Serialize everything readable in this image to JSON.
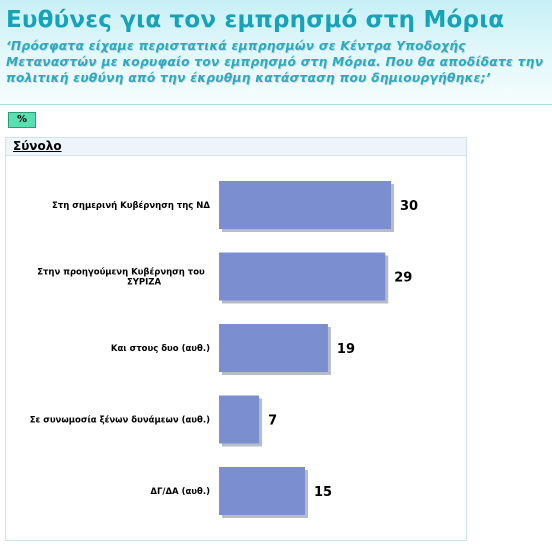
{
  "header": {
    "title": "Ευθύνες για τον εμπρησμό στη Μόρια",
    "subtitle": "‘Πρόσφατα είχαμε περιστατικά εμπρησμών σε Κέντρα Υποδοχής Μεταναστών με κορυφαίο τον εμπρησμό στη Μόρια. Που θα αποδίδατε την πολιτική ευθύνη από την έκρυθμη κατάσταση που δημιουργήθηκε;’"
  },
  "badge": {
    "label": "%"
  },
  "section": {
    "label": "Σύνολο"
  },
  "colors": {
    "bar": "#7b8fd0",
    "bar_shadow": "#b7bcc8"
  },
  "chart_data": {
    "type": "bar",
    "orientation": "horizontal",
    "categories": [
      "Στη σημερινή Κυβέρνηση της ΝΔ",
      "Στην προηγούμενη Κυβέρνηση του ΣΥΡΙΖΑ",
      "Και στους δυο (αυθ.)",
      "Σε συνωμοσία ξένων δυνάμεων (αυθ.)",
      "ΔΓ/ΔΑ (αυθ.)"
    ],
    "category_lines": [
      [
        "Στη σημερινή Κυβέρνηση της ΝΔ"
      ],
      [
        "Στην προηγούμενη Κυβέρνηση του",
        "ΣΥΡΙΖΑ"
      ],
      [
        "Και στους δυο (αυθ.)"
      ],
      [
        "Σε συνωμοσία ξένων δυνάμεων (αυθ.)"
      ],
      [
        "ΔΓ/ΔΑ (αυθ.)"
      ]
    ],
    "values": [
      30,
      29,
      19,
      7,
      15
    ],
    "xlim": [
      0,
      30
    ],
    "grid": false,
    "legend": "none"
  }
}
